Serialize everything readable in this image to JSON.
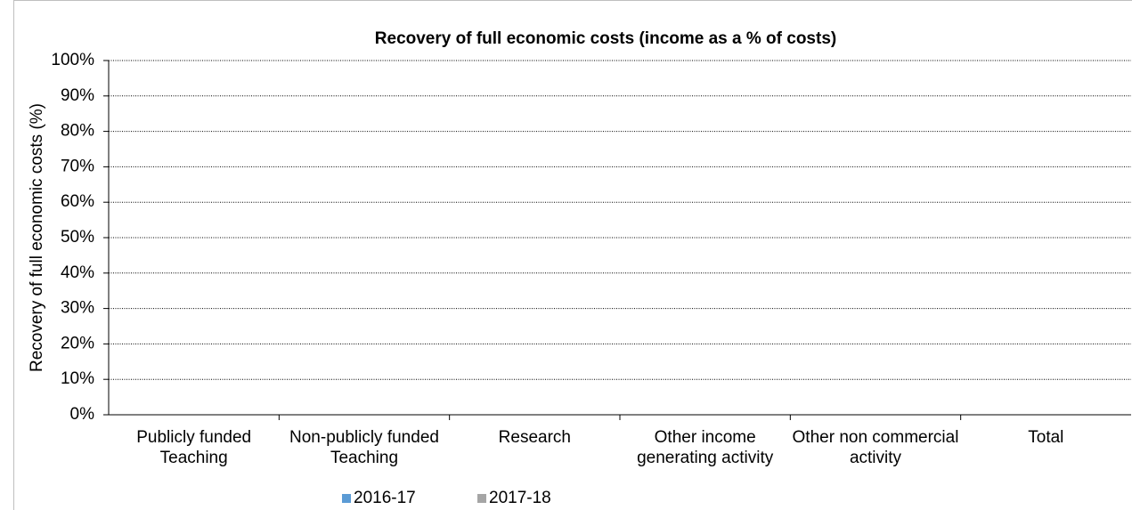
{
  "chart_data": {
    "type": "bar",
    "title": "Recovery of full economic costs (income as a % of costs)",
    "y_label": "Recovery of full economic costs (%)",
    "categories": [
      "Publicly funded Teaching",
      "Non-publicly funded Teaching",
      "Research",
      "Other income generating activity",
      "Other non commercial activity",
      "Total"
    ],
    "series": [
      {
        "name": "2016-17",
        "color": "#5b9bd5",
        "values": [
          null,
          null,
          null,
          null,
          null,
          null
        ]
      },
      {
        "name": "2017-18",
        "color": "#a5a5a5",
        "values": [
          null,
          null,
          null,
          null,
          null,
          null
        ]
      }
    ],
    "ylim": [
      0,
      100
    ],
    "yticks": [
      {
        "value": 0,
        "label": "0%"
      },
      {
        "value": 10,
        "label": "10%"
      },
      {
        "value": 20,
        "label": "20%"
      },
      {
        "value": 30,
        "label": "30%"
      },
      {
        "value": 40,
        "label": "40%"
      },
      {
        "value": 50,
        "label": "50%"
      },
      {
        "value": 60,
        "label": "60%"
      },
      {
        "value": 70,
        "label": "70%"
      },
      {
        "value": 80,
        "label": "80%"
      },
      {
        "value": 90,
        "label": "90%"
      },
      {
        "value": 100,
        "label": "100%"
      }
    ],
    "grid": true,
    "legend": "bottom"
  }
}
